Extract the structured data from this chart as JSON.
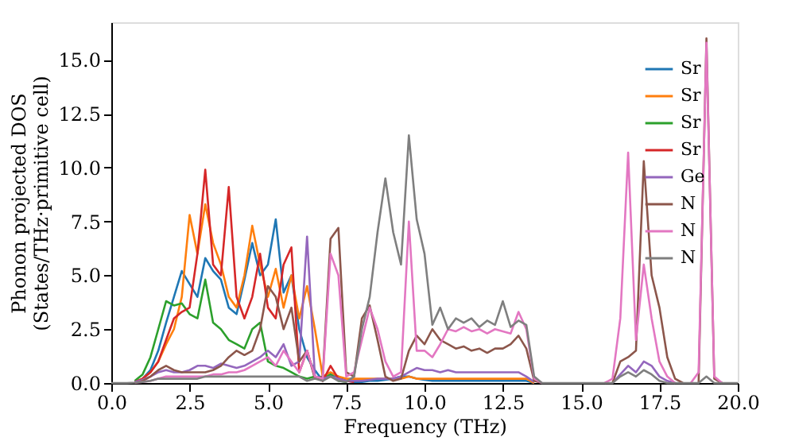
{
  "chart_data": {
    "type": "line",
    "xlabel": "Frequency (THz)",
    "ylabel": "Phonon projected DOS\n(States/THz·primitive cell)",
    "xlim": [
      0,
      20
    ],
    "ylim": [
      0,
      16.75
    ],
    "xticks": [
      {
        "value": 0,
        "label": "0.0"
      },
      2.5,
      {
        "value": 5,
        "label": "5.0"
      },
      7.5,
      {
        "value": 10,
        "label": "10.0"
      },
      12.5,
      {
        "value": 15,
        "label": "15.0"
      },
      17.5,
      {
        "value": 20,
        "label": "20.0"
      }
    ],
    "yticks": [
      {
        "value": 0,
        "label": "0.0"
      },
      2.5,
      {
        "value": 5,
        "label": "5.0"
      },
      7.5,
      {
        "value": 10,
        "label": "10.0"
      },
      12.5,
      {
        "value": 15,
        "label": "15.0"
      }
    ],
    "grid": false,
    "legend": "top right",
    "x": [
      0,
      0.25,
      0.5,
      0.75,
      1,
      1.25,
      1.5,
      1.75,
      2,
      2.25,
      2.5,
      2.75,
      3,
      3.25,
      3.5,
      3.75,
      4,
      4.25,
      4.5,
      4.75,
      5,
      5.25,
      5.5,
      5.75,
      6,
      6.25,
      6.5,
      6.75,
      7,
      7.25,
      7.5,
      7.75,
      8,
      8.25,
      8.5,
      8.75,
      9,
      9.25,
      9.5,
      9.75,
      10,
      10.25,
      10.5,
      10.75,
      11,
      11.25,
      11.5,
      11.75,
      12,
      12.25,
      12.5,
      12.75,
      13,
      13.25,
      13.5,
      13.75,
      14,
      14.25,
      14.5,
      14.75,
      15,
      15.25,
      15.5,
      15.75,
      16,
      16.25,
      16.5,
      16.75,
      17,
      17.25,
      17.5,
      17.75,
      18,
      18.25,
      18.5,
      18.75,
      19,
      19.25,
      19.5,
      19.75,
      20
    ],
    "series": [
      {
        "name": "Sr",
        "color": "#1f77b4",
        "values": [
          null,
          null,
          null,
          0.05,
          0.2,
          0.6,
          1.5,
          2.8,
          4.0,
          5.2,
          4.6,
          4.0,
          5.8,
          5.2,
          4.8,
          3.5,
          3.2,
          4.8,
          6.5,
          5.0,
          5.5,
          7.6,
          4.2,
          5.0,
          2.5,
          1.2,
          0.6,
          0.1,
          0.4,
          0.3,
          0.1,
          0.05,
          0.05,
          0.1,
          0.1,
          0.15,
          0.2,
          0.3,
          0.3,
          0.2,
          0.15,
          0.1,
          0.1,
          0.1,
          0.1,
          0.1,
          0.1,
          0.1,
          0.1,
          0.1,
          0.1,
          0.1,
          0.1,
          0.1,
          0,
          null,
          null,
          null,
          null,
          null,
          null,
          null,
          null,
          null,
          null,
          null,
          null,
          null,
          null,
          null,
          null,
          null,
          null,
          null,
          null,
          null,
          null,
          null,
          null,
          null,
          null
        ]
      },
      {
        "name": "Sr",
        "color": "#ff7f0e",
        "values": [
          null,
          null,
          null,
          0.03,
          0.2,
          0.5,
          1.0,
          1.8,
          2.5,
          4.0,
          7.8,
          6.0,
          8.3,
          6.5,
          5.5,
          4.0,
          3.5,
          5.0,
          7.3,
          5.5,
          4.0,
          5.3,
          3.5,
          5.0,
          3.0,
          4.5,
          2.5,
          0.3,
          0.5,
          0.3,
          0.2,
          0.2,
          0.2,
          0.2,
          0.2,
          0.2,
          0.2,
          0.2,
          0.3,
          0.2,
          0.2,
          0.2,
          0.2,
          0.2,
          0.2,
          0.2,
          0.2,
          0.2,
          0.2,
          0.2,
          0.2,
          0.2,
          0.2,
          0.2,
          0,
          null,
          null,
          null,
          null,
          null,
          null,
          null,
          null,
          null,
          null,
          null,
          null,
          null,
          null,
          null,
          null,
          null,
          null,
          null,
          null,
          null,
          null,
          null,
          null,
          null,
          null
        ]
      },
      {
        "name": "Sr",
        "color": "#2ca02c",
        "values": [
          null,
          null,
          null,
          0.1,
          0.4,
          1.2,
          2.5,
          3.8,
          3.6,
          3.7,
          3.2,
          3.0,
          4.8,
          2.8,
          2.5,
          2.0,
          1.8,
          1.6,
          2.5,
          2.8,
          1.0,
          0.8,
          0.7,
          0.5,
          0.3,
          0.2,
          0.3,
          0.2,
          0.4,
          0.1,
          0.05,
          null,
          null,
          null,
          null,
          null,
          null,
          null,
          null,
          null,
          null,
          null,
          null,
          null,
          null,
          null,
          null,
          null,
          null,
          null,
          null,
          null,
          null,
          null,
          null,
          null,
          null,
          null,
          null,
          null,
          null,
          null,
          null,
          null,
          null,
          null,
          null,
          null,
          null,
          null,
          null,
          null,
          null,
          null,
          null,
          null,
          null,
          null,
          null,
          null,
          null
        ]
      },
      {
        "name": "Sr",
        "color": "#d62728",
        "values": [
          null,
          null,
          null,
          0.05,
          0.2,
          0.5,
          1.0,
          2.0,
          3.0,
          3.3,
          3.5,
          6.0,
          9.9,
          5.5,
          5.0,
          9.1,
          4.0,
          3.0,
          4.0,
          6.0,
          3.5,
          3.0,
          5.5,
          6.3,
          0.5,
          1.5,
          0.3,
          0.1,
          0.8,
          0.2,
          0.1,
          0.05,
          null,
          null,
          null,
          null,
          null,
          null,
          null,
          null,
          null,
          null,
          null,
          null,
          null,
          null,
          null,
          null,
          null,
          null,
          null,
          null,
          null,
          null,
          null,
          null,
          null,
          null,
          null,
          null,
          null,
          null,
          null,
          null,
          null,
          null,
          null,
          null,
          null,
          null,
          null,
          null,
          null,
          null,
          null,
          null,
          null,
          null,
          null,
          null,
          null
        ]
      },
      {
        "name": "Ge",
        "color": "#9467bd",
        "values": [
          null,
          null,
          null,
          0.05,
          0.15,
          0.3,
          0.5,
          0.6,
          0.5,
          0.5,
          0.6,
          0.8,
          0.8,
          0.7,
          0.9,
          0.8,
          0.7,
          0.8,
          1.0,
          1.2,
          1.5,
          1.2,
          1.8,
          0.8,
          1.0,
          6.8,
          0.3,
          0.2,
          0.3,
          0.2,
          0.1,
          0.1,
          0.1,
          0.15,
          0.2,
          0.2,
          0.2,
          0.3,
          0.5,
          0.7,
          0.6,
          0.6,
          0.5,
          0.6,
          0.5,
          0.5,
          0.5,
          0.5,
          0.5,
          0.5,
          0.5,
          0.5,
          0.5,
          0.3,
          0.05,
          null,
          null,
          null,
          null,
          null,
          null,
          null,
          null,
          null,
          0,
          0.4,
          0.8,
          0.5,
          1.0,
          0.8,
          0.3,
          0.1,
          0,
          null,
          null,
          null,
          null,
          null,
          null,
          null,
          null
        ]
      },
      {
        "name": "N",
        "color": "#8c564b",
        "values": [
          null,
          null,
          null,
          0,
          0.1,
          0.3,
          0.6,
          0.8,
          0.6,
          0.5,
          0.5,
          0.5,
          0.5,
          0.6,
          0.8,
          1.2,
          1.5,
          1.3,
          1.5,
          2.5,
          4.5,
          4.0,
          2.5,
          3.5,
          1.0,
          1.5,
          0.2,
          0.3,
          6.7,
          7.2,
          0.5,
          0.3,
          3.0,
          3.6,
          2.0,
          0.3,
          0.1,
          0.2,
          1.5,
          2.2,
          1.8,
          2.5,
          2.0,
          1.8,
          1.6,
          1.7,
          1.5,
          1.6,
          1.4,
          1.6,
          1.6,
          1.8,
          2.2,
          1.6,
          0.1,
          0,
          null,
          null,
          null,
          null,
          null,
          null,
          null,
          null,
          0,
          1.0,
          1.2,
          1.5,
          10.3,
          5.0,
          3.5,
          1.2,
          0.2,
          0,
          null,
          0,
          16.0,
          0.2,
          0,
          null,
          null
        ]
      },
      {
        "name": "N",
        "color": "#e377c2",
        "values": [
          null,
          null,
          null,
          0.02,
          0.05,
          0.1,
          0.2,
          0.3,
          0.3,
          0.3,
          0.3,
          0.3,
          0.3,
          0.4,
          0.4,
          0.5,
          0.5,
          0.6,
          0.8,
          1.0,
          1.2,
          0.8,
          1.5,
          1.0,
          0.5,
          1.5,
          0.3,
          0.2,
          6.0,
          5.0,
          0.3,
          0.5,
          2.0,
          3.5,
          2.5,
          1.0,
          0.3,
          0.5,
          7.5,
          1.5,
          1.5,
          1.2,
          1.8,
          2.5,
          2.4,
          2.6,
          2.4,
          2.5,
          2.3,
          2.5,
          2.4,
          2.3,
          3.3,
          2.5,
          0.2,
          0,
          null,
          null,
          null,
          null,
          null,
          null,
          null,
          0,
          0.2,
          3.0,
          10.7,
          2.0,
          5.5,
          3.0,
          1.0,
          0.3,
          0,
          null,
          0,
          0.5,
          15.8,
          0.3,
          0,
          null,
          null
        ]
      },
      {
        "name": "N",
        "color": "#7f7f7f",
        "values": [
          0,
          0,
          0,
          0.02,
          0.05,
          0.1,
          0.2,
          0.2,
          0.2,
          0.2,
          0.2,
          0.2,
          0.3,
          0.3,
          0.3,
          0.3,
          0.3,
          0.3,
          0.3,
          0.3,
          0.3,
          0.3,
          0.3,
          0.3,
          0.3,
          0.1,
          0.2,
          0.1,
          0.3,
          0.1,
          0.05,
          0.3,
          2.5,
          4.0,
          7.0,
          9.5,
          7.0,
          5.5,
          11.5,
          7.6,
          6.0,
          2.7,
          3.5,
          2.5,
          3.0,
          2.8,
          3.0,
          2.6,
          2.9,
          2.7,
          3.8,
          2.6,
          2.9,
          2.7,
          0.3,
          0,
          0,
          0,
          0,
          0,
          0,
          0,
          0,
          0,
          0,
          0.3,
          0.5,
          0.3,
          0.6,
          0.4,
          0.1,
          0,
          0,
          0,
          0,
          0,
          0.3,
          0,
          0,
          0,
          0
        ]
      }
    ]
  }
}
